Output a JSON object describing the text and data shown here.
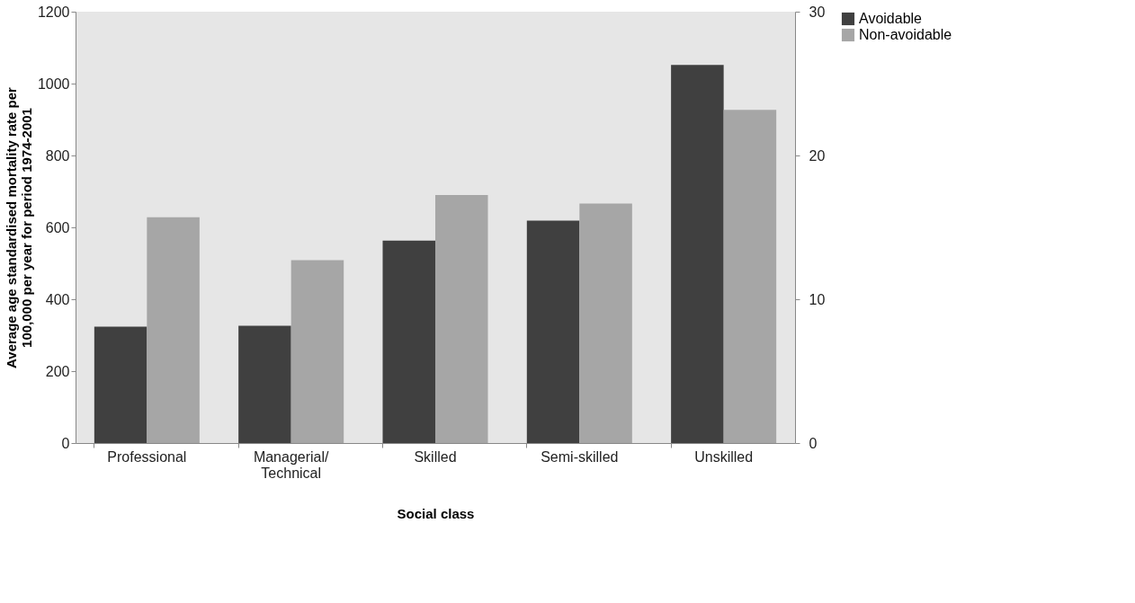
{
  "chart_data": {
    "type": "bar",
    "xlabel": "Social class",
    "ylabel": "Average age standardised mortality rate per 100,000 per year for period 1974-2001",
    "categories": [
      "Professional",
      "Managerial/Technical",
      "Skilled",
      "Semi-skilled",
      "Unskilled"
    ],
    "series": [
      {
        "name": "Avoidable",
        "color": "#404040",
        "values": [
          324,
          326,
          563,
          619,
          1052
        ]
      },
      {
        "name": "Non-avoidable",
        "color": "#a6a6a6",
        "values": [
          628,
          509,
          690,
          666,
          927
        ]
      }
    ],
    "ylim": [
      0,
      1200
    ],
    "yticks": [
      0,
      200,
      400,
      600,
      800,
      1000,
      1200
    ],
    "y2lim": [
      0,
      30
    ],
    "y2ticks": [
      0,
      10,
      20,
      30
    ],
    "legend": "right",
    "grid": false
  }
}
